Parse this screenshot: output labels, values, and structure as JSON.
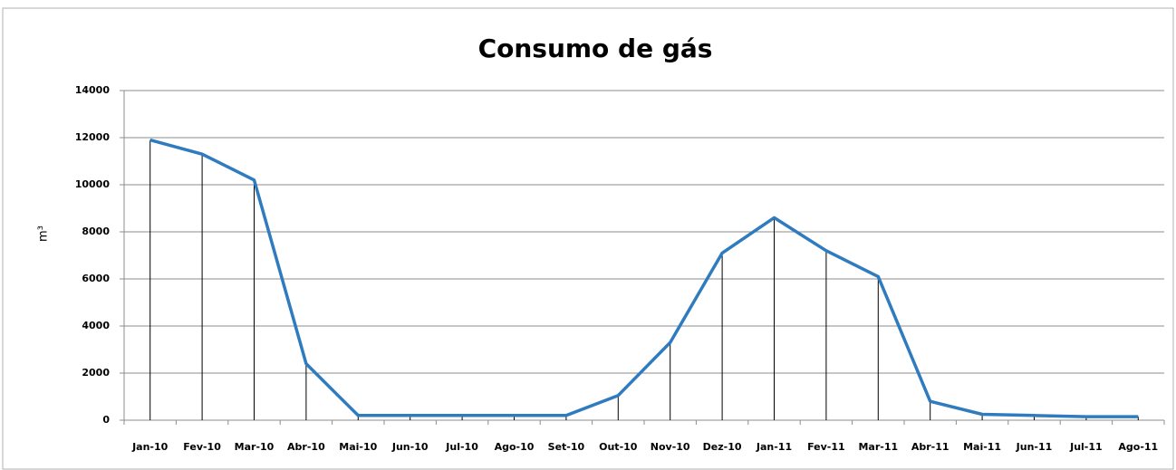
{
  "chart_data": {
    "type": "line",
    "title": "Consumo de gás",
    "y_label": "m³",
    "categories": [
      "Jan-10",
      "Fev-10",
      "Mar-10",
      "Abr-10",
      "Mai-10",
      "Jun-10",
      "Jul-10",
      "Ago-10",
      "Set-10",
      "Out-10",
      "Nov-10",
      "Dez-10",
      "Jan-11",
      "Fev-11",
      "Mar-11",
      "Abr-11",
      "Mai-11",
      "Jun-11",
      "Jul-11",
      "Ago-11"
    ],
    "series": [
      {
        "name": "Consumo de gás",
        "color": "#2f7bbf",
        "values": [
          11900,
          11300,
          10200,
          2400,
          200,
          200,
          200,
          200,
          200,
          1050,
          3300,
          7100,
          8600,
          7200,
          6100,
          800,
          250,
          200,
          150,
          150
        ]
      }
    ],
    "ylim": [
      0,
      14000
    ],
    "yticks": [
      0,
      2000,
      4000,
      6000,
      8000,
      10000,
      12000,
      14000
    ],
    "grid": true,
    "drop_lines": true
  }
}
